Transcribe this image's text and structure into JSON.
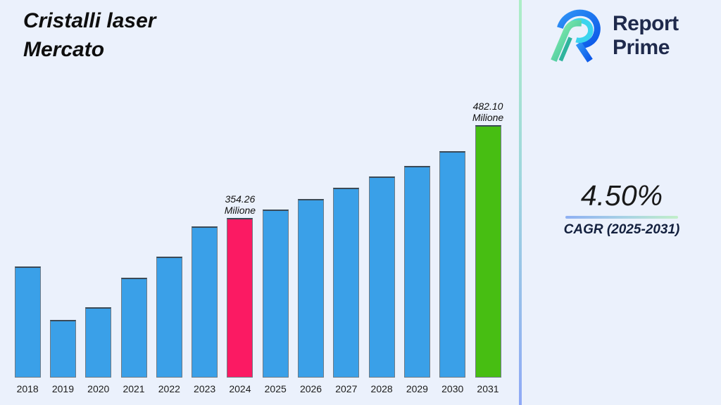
{
  "header": {
    "title_line1": "Cristalli laser",
    "title_line2": "Mercato"
  },
  "logo": {
    "name_line1": "Report",
    "name_line2": "Prime"
  },
  "stats": {
    "cagr_value": "4.50%",
    "cagr_label": "CAGR (2025-2031)"
  },
  "chart_data": {
    "type": "bar",
    "title": "Cristalli laser Mercato",
    "unit": "Milione",
    "categories": [
      "2018",
      "2019",
      "2020",
      "2021",
      "2022",
      "2023",
      "2024",
      "2025",
      "2026",
      "2027",
      "2028",
      "2029",
      "2030",
      "2031"
    ],
    "values": [
      287.4,
      213.8,
      231.3,
      271.9,
      301.0,
      342.6,
      354.26,
      365.9,
      380.4,
      395.9,
      411.4,
      425.9,
      446.2,
      482.1
    ],
    "bar_colors": [
      "#3AA0E8",
      "#3AA0E8",
      "#3AA0E8",
      "#3AA0E8",
      "#3AA0E8",
      "#3AA0E8",
      "#FB1A63",
      "#3AA0E8",
      "#3AA0E8",
      "#3AA0E8",
      "#3AA0E8",
      "#3AA0E8",
      "#3AA0E8",
      "#47BE12"
    ],
    "bar_labels": [
      null,
      null,
      null,
      null,
      null,
      null,
      "354.26\nMilione",
      null,
      null,
      null,
      null,
      null,
      null,
      "482.10\nMilione"
    ],
    "colors": {
      "default": "#3AA0E8",
      "highlight_current": "#FB1A63",
      "highlight_forecast": "#47BE12"
    },
    "value_axis": {
      "min": 134.4,
      "max": 482.1,
      "visible": false
    },
    "xlabel": "",
    "ylabel": "",
    "grid": false,
    "legend": false
  }
}
